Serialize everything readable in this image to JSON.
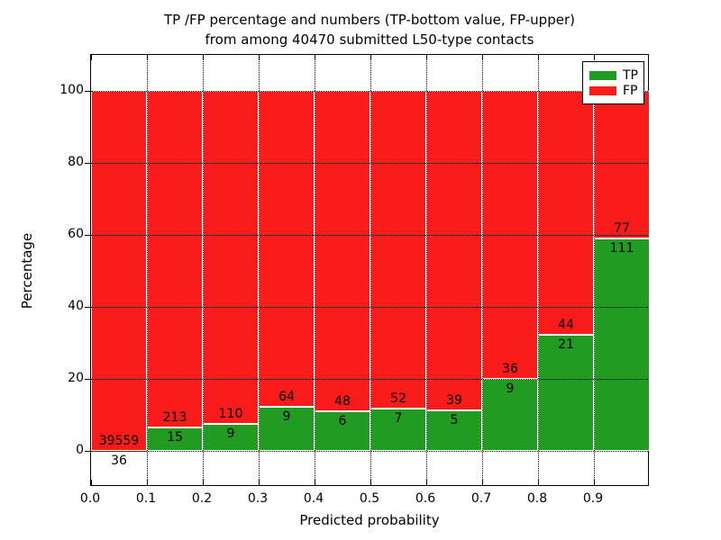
{
  "title": {
    "line1": "TP /FP percentage and numbers (TP-bottom value, FP-upper)",
    "line2": "from among 40470 submitted L50-type contacts"
  },
  "axes": {
    "xlabel": "Predicted probability",
    "ylabel": "Percentage",
    "x_tick_labels": [
      "0.0",
      "0.1",
      "0.2",
      "0.3",
      "0.4",
      "0.5",
      "0.6",
      "0.7",
      "0.8",
      "0.9"
    ],
    "y_tick_labels": [
      "0",
      "20",
      "40",
      "60",
      "80",
      "100"
    ],
    "y_tick_values": [
      0,
      20,
      40,
      60,
      80,
      100
    ],
    "xlim": [
      0.0,
      1.0
    ],
    "ylim": [
      -10,
      110
    ],
    "grid": "dotted"
  },
  "legend": {
    "position": "upper-right",
    "items": [
      {
        "label": "TP",
        "color": "#229b22"
      },
      {
        "label": "FP",
        "color": "#fa1b1b"
      }
    ]
  },
  "colors": {
    "tp": "#229b22",
    "fp": "#fa1b1b",
    "bar_edge": "#ffffff",
    "grid": "#000000",
    "background": "#ffffff",
    "text": "#000000"
  },
  "chart_data": {
    "type": "bar",
    "stacked": true,
    "units": "percent of bin total",
    "title": "TP /FP percentage and numbers (TP-bottom value, FP-upper) from among 40470 submitted L50-type contacts",
    "xlabel": "Predicted probability",
    "ylabel": "Percentage",
    "bin_width": 0.1,
    "categories": [
      "0.0-0.1",
      "0.1-0.2",
      "0.2-0.3",
      "0.3-0.4",
      "0.4-0.5",
      "0.5-0.6",
      "0.6-0.7",
      "0.7-0.8",
      "0.8-0.9",
      "0.9-1.0"
    ],
    "series": [
      {
        "name": "TP",
        "color": "#229b22",
        "counts": [
          36,
          15,
          9,
          9,
          6,
          7,
          5,
          9,
          21,
          111
        ],
        "pct": [
          0.09,
          6.58,
          7.56,
          12.33,
          11.11,
          11.86,
          11.36,
          20.0,
          32.31,
          59.04
        ]
      },
      {
        "name": "FP",
        "color": "#fa1b1b",
        "counts": [
          39559,
          213,
          110,
          64,
          48,
          52,
          39,
          36,
          44,
          77
        ],
        "pct": [
          99.91,
          93.42,
          92.44,
          87.67,
          88.89,
          88.14,
          88.64,
          80.0,
          67.69,
          40.96
        ]
      }
    ],
    "bar_value_labels": "TP count below segment boundary, FP count above segment boundary",
    "ylim": [
      -10,
      110
    ],
    "legend_position": "upper right"
  }
}
